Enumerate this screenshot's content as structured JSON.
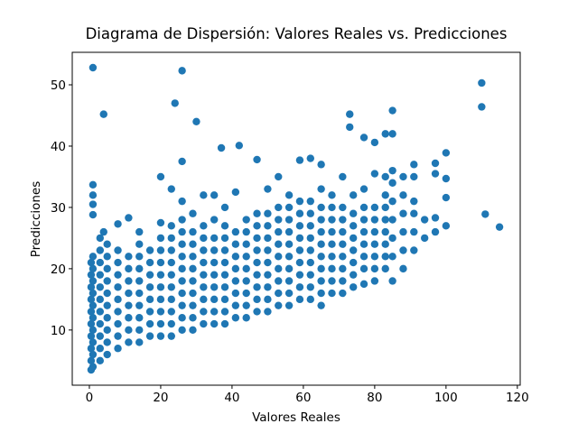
{
  "chart_data": {
    "type": "scatter",
    "title": "Diagrama de Dispersión: Valores Reales vs. Predicciones",
    "x_label": "Valores Reales",
    "y_label": "Predicciones",
    "color": "#1f77b4",
    "xlim": [
      -4.8,
      120.8
    ],
    "ylim": [
      1.0,
      55.3
    ],
    "xticks": [
      0,
      20,
      40,
      60,
      80,
      100,
      120
    ],
    "yticks": [
      10,
      20,
      30,
      40,
      50
    ],
    "x": [
      0.5,
      0.5,
      0.5,
      0.5,
      0.5,
      0.5,
      0.5,
      0.5,
      0.5,
      0.5,
      1,
      1,
      1,
      1,
      1,
      1,
      1,
      1,
      1,
      1,
      1,
      1,
      1,
      1,
      1,
      3,
      3,
      3,
      3,
      3,
      3,
      3,
      3,
      3,
      3,
      3,
      4,
      4,
      5,
      5,
      5,
      5,
      5,
      5,
      5,
      5,
      5,
      5,
      8,
      8,
      8,
      8,
      8,
      8,
      8,
      8,
      8,
      8,
      11,
      11,
      11,
      11,
      11,
      11,
      11,
      11,
      11,
      14,
      14,
      14,
      14,
      14,
      14,
      14,
      14,
      14,
      14,
      17,
      17,
      17,
      17,
      17,
      17,
      17,
      17,
      20,
      20,
      20,
      20,
      20,
      20,
      20,
      20,
      20,
      20,
      20,
      23,
      23,
      23,
      23,
      23,
      23,
      23,
      23,
      23,
      23,
      23,
      24,
      26,
      26,
      26,
      26,
      26,
      26,
      26,
      26,
      26,
      26,
      26,
      26,
      26,
      29,
      29,
      29,
      29,
      29,
      29,
      29,
      29,
      29,
      29,
      30,
      32,
      32,
      32,
      32,
      32,
      32,
      32,
      32,
      32,
      32,
      35,
      35,
      35,
      35,
      35,
      35,
      35,
      35,
      35,
      35,
      37,
      38,
      38,
      38,
      38,
      38,
      38,
      38,
      38,
      38,
      38,
      41,
      41,
      41,
      41,
      41,
      41,
      41,
      41,
      41,
      42,
      44,
      44,
      44,
      44,
      44,
      44,
      44,
      44,
      44,
      47,
      47,
      47,
      47,
      47,
      47,
      47,
      47,
      47,
      47,
      50,
      50,
      50,
      50,
      50,
      50,
      50,
      50,
      50,
      50,
      53,
      53,
      53,
      53,
      53,
      53,
      53,
      53,
      53,
      53,
      56,
      56,
      56,
      56,
      56,
      56,
      56,
      56,
      56,
      56,
      59,
      59,
      59,
      59,
      59,
      59,
      59,
      59,
      59,
      59,
      62,
      62,
      62,
      62,
      62,
      62,
      62,
      62,
      62,
      62,
      65,
      65,
      65,
      65,
      65,
      65,
      65,
      65,
      65,
      65,
      65,
      68,
      68,
      68,
      68,
      68,
      68,
      68,
      68,
      68,
      71,
      71,
      71,
      71,
      71,
      71,
      71,
      71,
      71,
      73,
      73,
      74,
      74,
      74,
      74,
      74,
      74,
      74,
      74,
      77,
      77,
      77,
      77,
      77,
      77,
      77,
      77,
      77,
      80,
      80,
      80,
      80,
      80,
      80,
      80,
      80,
      80,
      83,
      83,
      83,
      83,
      83,
      83,
      83,
      83,
      83,
      85,
      85,
      85,
      85,
      85,
      85,
      85,
      85,
      85,
      88,
      88,
      88,
      88,
      88,
      88,
      91,
      91,
      91,
      91,
      91,
      91,
      94,
      94,
      97,
      97,
      97,
      97,
      100,
      100,
      100,
      100,
      110,
      110,
      111,
      115
    ],
    "y": [
      3.5,
      5,
      7,
      9,
      11,
      13,
      15,
      17,
      19,
      21,
      4,
      6,
      8,
      10,
      12,
      14,
      16,
      18,
      20,
      22,
      28.8,
      30.5,
      32,
      33.7,
      52.8,
      5,
      7,
      9,
      11,
      13,
      15,
      17,
      19,
      21,
      23,
      25,
      45.2,
      26,
      6,
      8,
      10,
      12,
      14,
      16,
      18,
      20,
      22,
      24,
      7,
      9,
      11,
      13,
      15,
      17,
      19,
      21,
      23,
      27.3,
      8,
      10,
      12,
      14,
      16,
      18,
      20,
      22,
      28.3,
      8,
      10,
      12,
      14,
      16,
      18,
      20,
      22,
      24,
      26,
      9,
      11,
      13,
      15,
      17,
      19,
      21,
      23,
      9,
      11,
      13,
      15,
      17,
      19,
      21,
      23,
      25,
      27.5,
      35,
      9,
      11,
      13,
      15,
      17,
      19,
      21,
      23,
      25,
      27,
      33,
      47,
      10,
      12,
      14,
      16,
      18,
      20,
      22,
      24,
      26,
      28,
      31,
      37.5,
      52.3,
      10,
      12,
      14,
      16,
      18,
      20,
      22,
      24,
      26,
      29,
      44,
      11,
      13,
      15,
      17,
      19,
      21,
      23,
      25,
      27,
      32,
      11,
      13,
      15,
      17,
      19,
      21,
      23,
      25,
      28,
      32,
      39.7,
      11,
      13,
      15,
      17,
      19,
      21,
      23,
      25,
      27,
      30,
      12,
      14,
      16,
      18,
      20,
      22,
      24,
      26,
      32.5,
      40.1,
      12,
      14,
      16,
      18,
      20,
      22,
      24,
      26,
      28,
      13,
      15,
      17,
      19,
      21,
      23,
      25,
      27,
      29,
      37.8,
      13,
      15,
      17,
      19,
      21,
      23,
      25,
      27,
      29,
      33,
      14,
      16,
      18,
      20,
      22,
      24,
      26,
      28,
      30,
      35,
      14,
      16,
      18,
      20,
      22,
      24,
      26,
      28,
      30,
      32,
      15,
      17,
      19,
      21,
      23,
      25,
      27,
      29,
      31,
      37.7,
      15,
      17,
      19,
      21,
      23,
      25,
      27,
      29,
      31,
      38,
      14,
      16,
      18,
      20,
      22,
      24,
      26,
      28,
      30,
      33,
      37,
      16,
      18,
      20,
      22,
      24,
      26,
      28,
      30,
      32,
      16,
      18,
      20,
      22,
      24,
      26,
      28,
      30,
      35,
      45.2,
      43.1,
      17,
      19,
      21,
      23,
      25,
      27,
      29,
      32,
      17.5,
      20,
      22,
      24,
      26,
      28,
      30,
      33,
      41.4,
      18,
      20,
      22,
      24,
      26,
      28,
      30,
      35.5,
      40.6,
      20,
      22,
      24,
      26,
      28,
      30,
      32,
      35,
      42,
      18,
      22,
      25,
      28,
      31,
      34,
      36,
      42,
      45.8,
      20,
      23,
      26,
      29,
      32,
      35,
      23,
      26,
      29,
      31,
      35,
      37,
      25,
      28,
      26,
      28.3,
      35.5,
      37.2,
      27,
      31.6,
      34.7,
      38.9,
      46.4,
      50.3,
      28.9,
      26.8
    ]
  }
}
